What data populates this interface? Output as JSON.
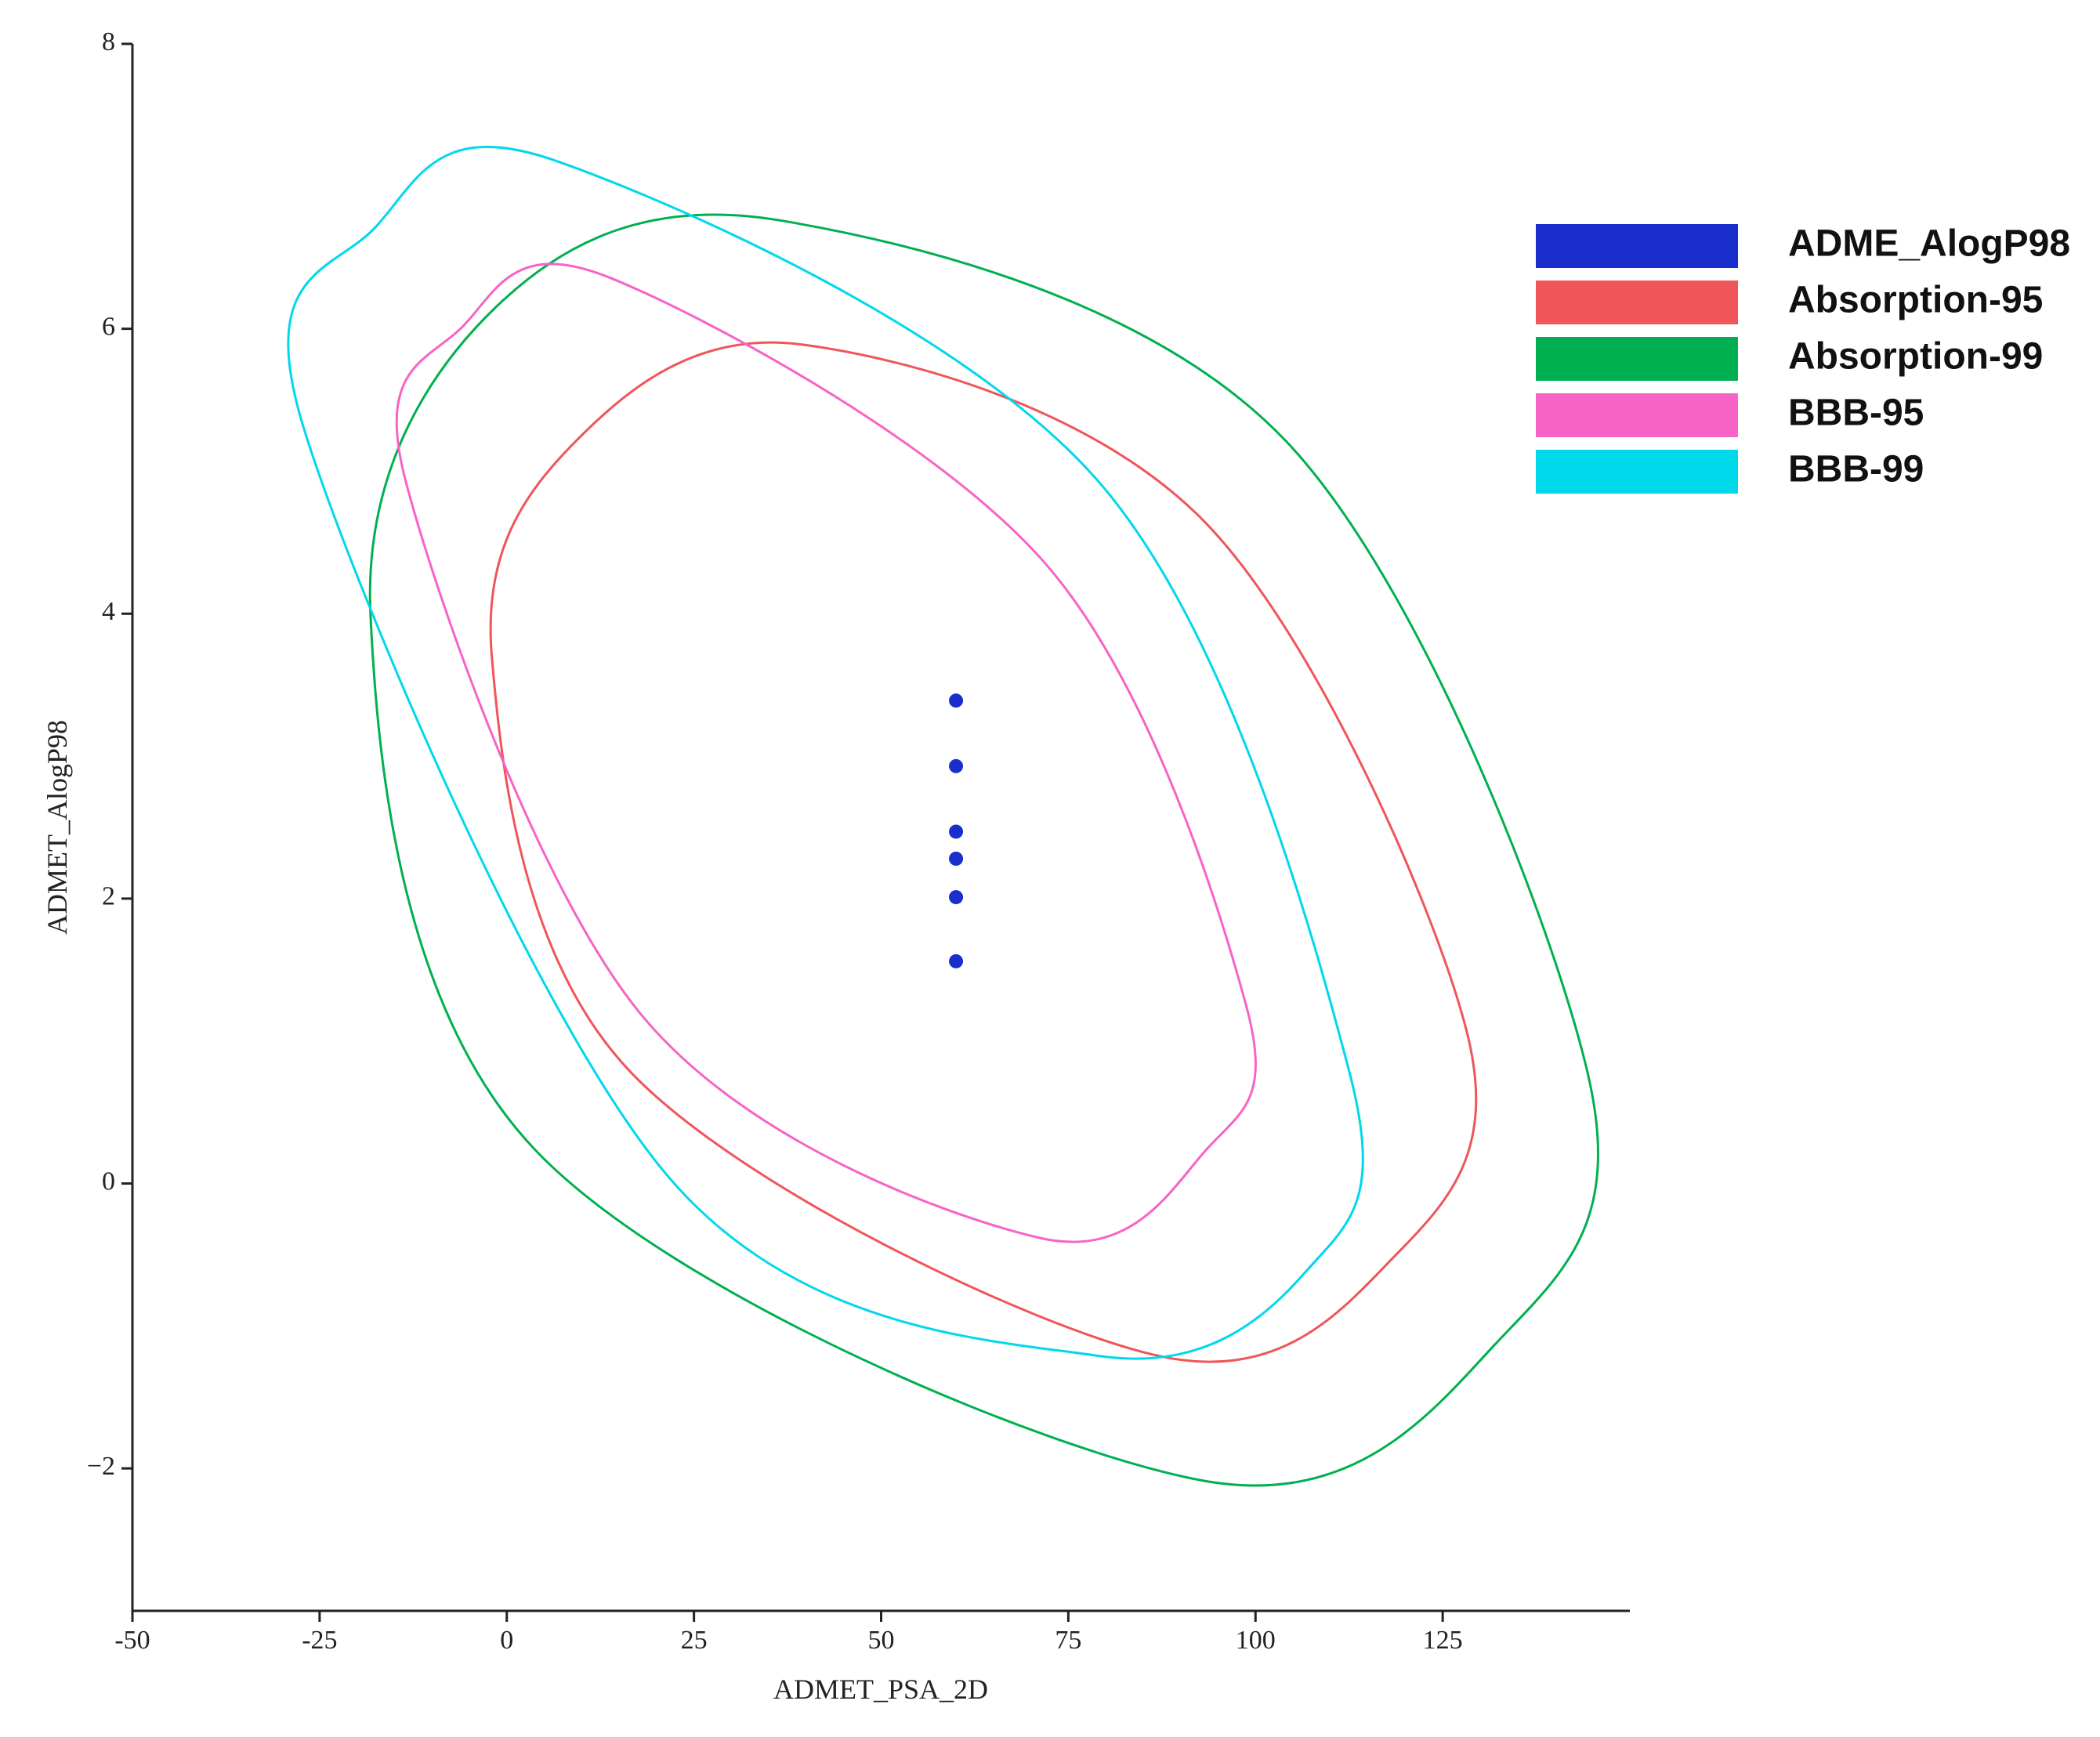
{
  "chart_data": {
    "type": "scatter",
    "x_label": "ADMET_PSA_2D",
    "y_label": "ADMET_AlogP98",
    "xlim": [
      -50,
      150
    ],
    "ylim": [
      -3,
      8
    ],
    "xticks": [
      -50,
      -25,
      0,
      25,
      50,
      75,
      100,
      125
    ],
    "yticks": [
      {
        "value": -2,
        "label": "−2"
      },
      0,
      2,
      4,
      6,
      8
    ],
    "legend": "upper right",
    "series": [
      {
        "name": "ADME_AlogP98",
        "type": "scatter",
        "color": "#1a2ecc",
        "x": [
          60,
          60,
          60,
          60,
          60,
          60
        ],
        "values": [
          3.39,
          2.93,
          2.47,
          2.28,
          2.01,
          1.56
        ]
      },
      {
        "name": "Absorption-95",
        "type": "ellipse",
        "color": "#f0555a",
        "x": [
          39.3,
          93.3,
          128.2,
          118.4,
          86.2,
          16.4,
          -2.0,
          9.2
        ],
        "values": [
          5.89,
          4.64,
          1.07,
          -0.52,
          -1.2,
          0.79,
          3.7,
          5.21
        ]
      },
      {
        "name": "Absorption-99",
        "type": "ellipse",
        "color": "#00b050",
        "x": [
          36.6,
          104.1,
          144.3,
          132.7,
          92.4,
          3.9,
          -18.2,
          -1.5
        ],
        "values": [
          6.76,
          5.21,
          0.79,
          -1.09,
          -2.08,
          0.23,
          3.99,
          6.15
        ]
      },
      {
        "name": "BBB-95",
        "type": "ellipse",
        "color": "#f763c6",
        "x": [
          13.7,
          71.8,
          98.7,
          93.3,
          71.0,
          18.2,
          -13.5,
          -6.0
        ],
        "values": [
          6.36,
          4.36,
          1.26,
          0.23,
          -0.38,
          1.17,
          4.93,
          6.01
        ]
      },
      {
        "name": "BBB-99",
        "type": "ellipse",
        "color": "#00d8ec",
        "x": [
          6.5,
          79.0,
          112.5,
          106.7,
          79.0,
          21.7,
          -27.1,
          -17.6
        ],
        "values": [
          7.18,
          4.93,
          0.79,
          -0.62,
          -1.21,
          0.04,
          5.3,
          6.71
        ]
      }
    ]
  }
}
